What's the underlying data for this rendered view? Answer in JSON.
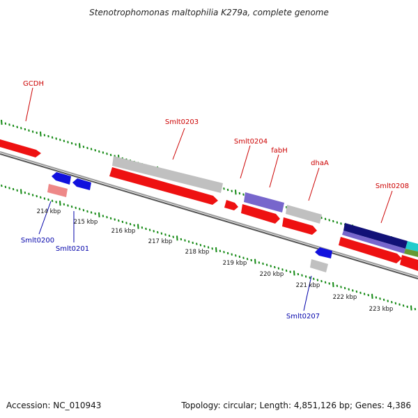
{
  "title": "Stenotrophomonas maltophilia K279a, complete genome",
  "footer": {
    "accession": "Accession: NC_010943",
    "topology": "Topology: circular; Length: 4,851,126 bp; Genes: 4,386"
  },
  "colors": {
    "backbone": "#777777",
    "tick": "#118811",
    "fwd_label": "#cc0000",
    "rev_label": "#0000aa",
    "cds_red": "#ee1111",
    "cds_grey": "#c0c0c0",
    "cds_purple": "#7766cc",
    "cds_blue": "#1111dd",
    "cds_pink": "#ee8888",
    "cds_navy": "#111177",
    "cds_cyan": "#22cccc",
    "cds_olive": "#669933"
  },
  "kbp_labels": [
    "214 kbp",
    "215 kbp",
    "216 kbp",
    "217 kbp",
    "218 kbp",
    "219 kbp",
    "220 kbp",
    "221 kbp",
    "222 kbp",
    "223 kbp"
  ],
  "forward_gene_labels": [
    "GCDH",
    "Smlt0203",
    "Smlt0204",
    "fabH",
    "dhaA",
    "Smlt0208"
  ],
  "reverse_gene_labels": [
    "Smlt0200",
    "Smlt0201",
    "Smlt0207"
  ]
}
